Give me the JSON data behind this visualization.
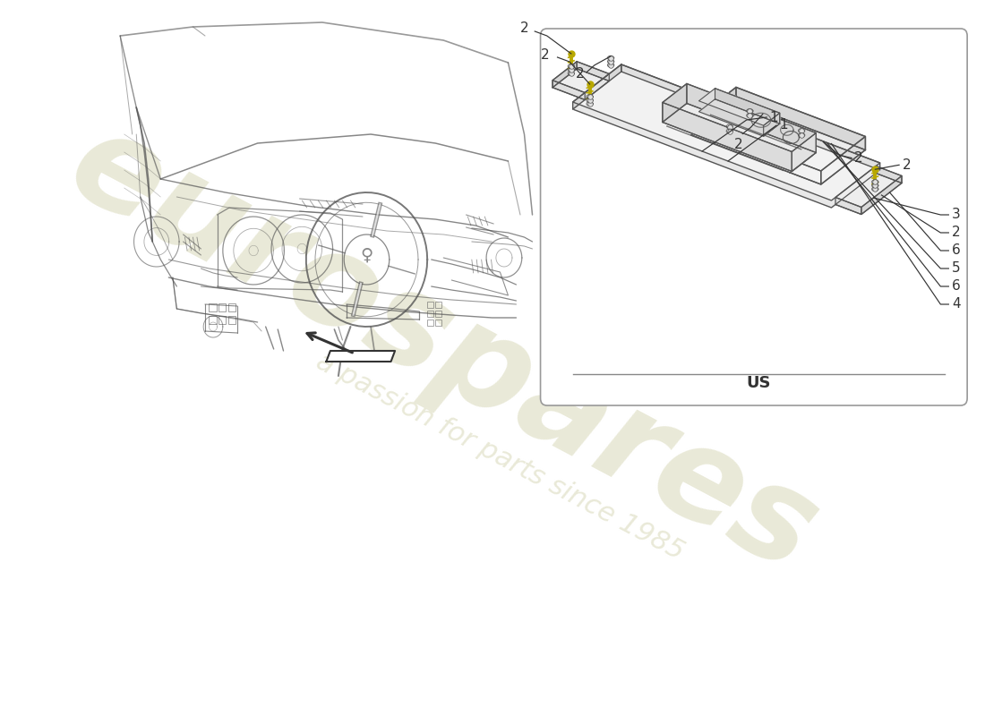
{
  "bg_color": "#ffffff",
  "line_color": "#555555",
  "line_color_dark": "#333333",
  "screw_color": "#b8a800",
  "watermark1": "eurospares",
  "watermark2": "a passion for parts since 1985",
  "wm_color": "#d8d8b8",
  "us_label": "US",
  "box_lc": "#aaaaaa"
}
